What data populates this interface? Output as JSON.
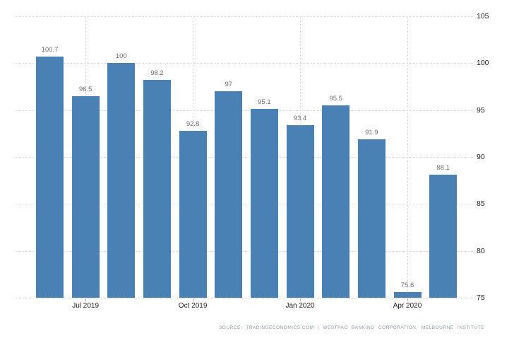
{
  "colors": {
    "background": "#ffffff",
    "bar": "#4a81b5",
    "grid": "#e0e0e0",
    "tick": "#b0b0b0",
    "value_label": "#6f6f6f",
    "axis_label": "#222222",
    "source": "#939ca3"
  },
  "source_note": "SOURCE: TRADINGECONOMICS.COM | WESTPAC BANKING CORPORATION, MELBOURNE INSTITUTE",
  "chart_data": {
    "type": "bar",
    "title": "",
    "xlabel": "",
    "ylabel": "",
    "ylim": [
      75,
      105
    ],
    "y_ticks": [
      105,
      100,
      95,
      90,
      85,
      80,
      75
    ],
    "y_axis_side": "right",
    "grid": "dotted",
    "legend": "none",
    "bars": [
      {
        "value": 100.7,
        "label": "100.7",
        "axis_label": ""
      },
      {
        "value": 96.5,
        "label": "96.5",
        "axis_label": "Jul 2019"
      },
      {
        "value": 100,
        "label": "100",
        "axis_label": ""
      },
      {
        "value": 98.2,
        "label": "98.2",
        "axis_label": ""
      },
      {
        "value": 92.8,
        "label": "92.8",
        "axis_label": "Oct 2019"
      },
      {
        "value": 97,
        "label": "97",
        "axis_label": ""
      },
      {
        "value": 95.1,
        "label": "95.1",
        "axis_label": ""
      },
      {
        "value": 93.4,
        "label": "93.4",
        "axis_label": "Jan 2020"
      },
      {
        "value": 95.5,
        "label": "95.5",
        "axis_label": ""
      },
      {
        "value": 91.9,
        "label": "91.9",
        "axis_label": ""
      },
      {
        "value": 75.6,
        "label": "75.6",
        "axis_label": "Apr 2020"
      },
      {
        "value": 88.1,
        "label": "88.1",
        "axis_label": ""
      }
    ]
  }
}
